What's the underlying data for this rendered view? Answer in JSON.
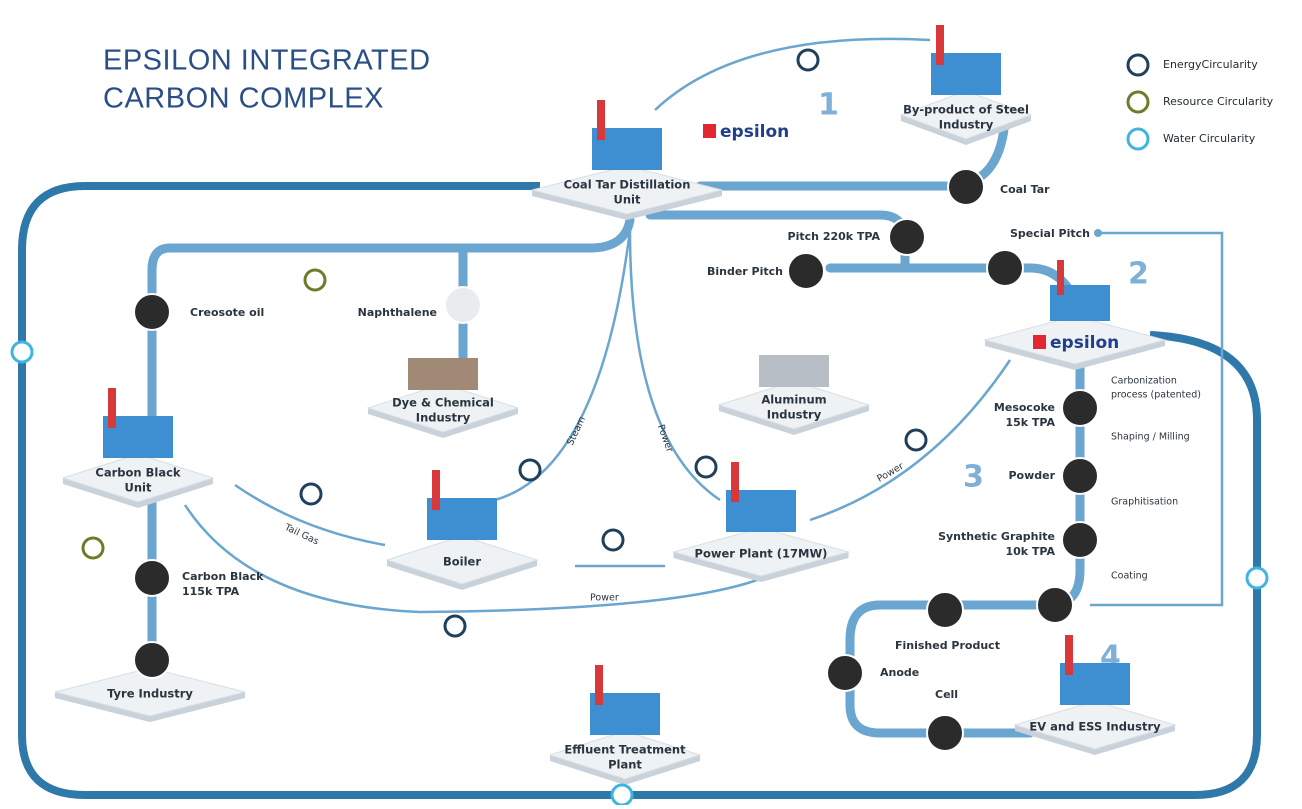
{
  "title": [
    "EPSILON INTEGRATED",
    "CARBON COMPLEX"
  ],
  "legend": [
    "EnergyCircularity",
    "Resource Circularity",
    "Water Circularity"
  ],
  "brand": "epsilon",
  "steps": [
    "1",
    "2",
    "3",
    "4"
  ],
  "platforms": [
    {
      "label": [
        "By-product of Steel",
        "Industry"
      ]
    },
    {
      "label": [
        "Coal Tar Distillation",
        "Unit"
      ]
    },
    {
      "label": [
        "Dye & Chemical",
        "Industry"
      ]
    },
    {
      "label": [
        "Aluminum",
        "Industry"
      ]
    },
    {
      "label": [
        "Carbon Black",
        "Unit"
      ]
    },
    {
      "label": [
        "Boiler"
      ]
    },
    {
      "label": [
        "Power Plant (17MW)"
      ]
    },
    {
      "label": [
        "Tyre Industry"
      ]
    },
    {
      "label": [
        "Effluent Treatment",
        "Plant"
      ]
    },
    {
      "label": [
        "EV and ESS  Industry"
      ]
    }
  ],
  "materials": [
    {
      "label": [
        "Coal Tar"
      ]
    },
    {
      "label": [
        "Pitch  220k TPA"
      ]
    },
    {
      "label": [
        "Special Pitch"
      ]
    },
    {
      "label": [
        "Binder Pitch"
      ]
    },
    {
      "label": [
        "Creosote oil"
      ]
    },
    {
      "label": [
        "Naphthalene"
      ]
    },
    {
      "label": [
        "Carbon Black",
        "115k TPA"
      ]
    },
    {
      "label": [
        "Mesocoke",
        "15k TPA"
      ]
    },
    {
      "label": [
        "Powder"
      ]
    },
    {
      "label": [
        "Synthetic Graphite",
        "10k TPA"
      ]
    },
    {
      "label": [
        "Finished Product"
      ]
    },
    {
      "label": [
        "Anode"
      ]
    },
    {
      "label": [
        "Cell"
      ]
    }
  ],
  "processes": [
    [
      "Carbonization",
      "process (patented)"
    ],
    [
      "Shaping / Milling"
    ],
    [
      "Graphitisation"
    ],
    [
      "Coating"
    ]
  ],
  "flow_labels": [
    "Steam",
    "Power",
    "Tail Gas",
    "Power",
    "Power"
  ]
}
